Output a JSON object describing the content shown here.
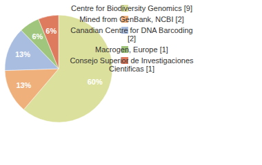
{
  "chart_data": {
    "type": "pie",
    "categories": [
      "Centre for Biodiversity Genomics [9]",
      "Mined from GenBank, NCBI [2]",
      "Canadian Centre for DNA Barcoding [2]",
      "Macrogen, Europe [1]",
      "Consejo Superior de Investigaciones Cientificas [1]"
    ],
    "values": [
      60,
      13,
      13,
      6,
      6
    ],
    "value_labels": [
      "60%",
      "13%",
      "13%",
      "6%",
      "6%"
    ],
    "colors": [
      "#dbe09c",
      "#f0b07c",
      "#a9bde0",
      "#9fc67c",
      "#de7a5e"
    ],
    "data_labels": true,
    "legend": "right"
  }
}
